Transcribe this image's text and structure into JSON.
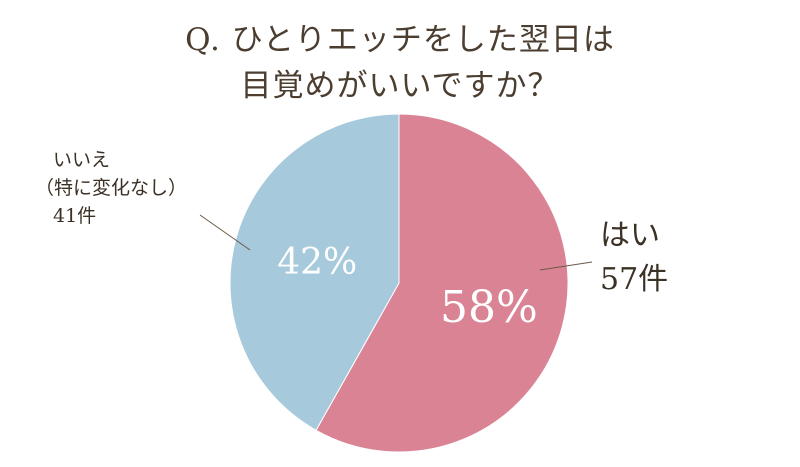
{
  "title_lines": [
    "Q. ひとりエッチをした翌日は",
    "目覚めがいいですか？"
  ],
  "chart_data": {
    "type": "pie",
    "slices": [
      {
        "label_lines": [
          "はい",
          "57件"
        ],
        "count": 57,
        "percent": 58,
        "percent_label": "58%",
        "color": "#d98395"
      },
      {
        "label_lines": [
          "いいえ",
          "（特に変化なし）",
          "41件"
        ],
        "count": 41,
        "percent": 42,
        "percent_label": "42%",
        "color": "#a6c9dc"
      }
    ],
    "start_angle_deg": 0,
    "direction": "clockwise"
  }
}
